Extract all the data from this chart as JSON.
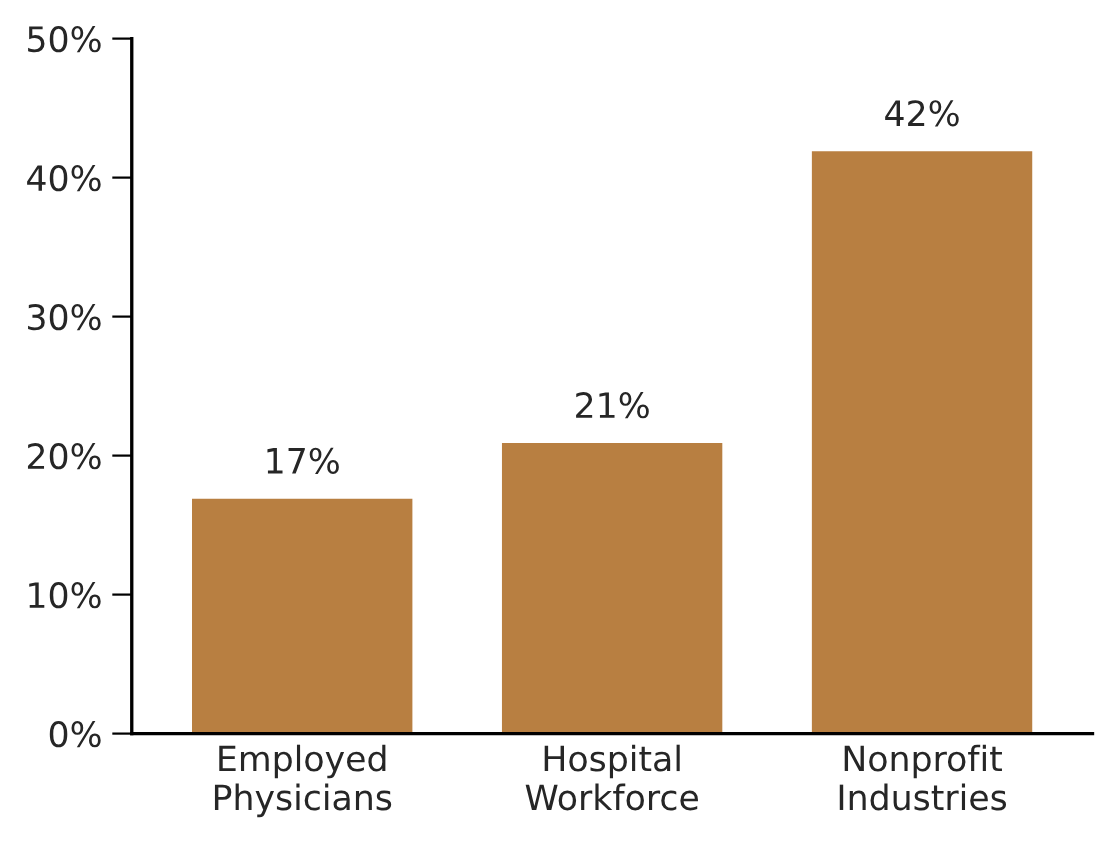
{
  "chart_data": {
    "type": "bar",
    "categories": [
      "Employed\nPhysicians",
      "Hospital\nWorkforce",
      "Nonprofit\nIndustries"
    ],
    "values": [
      17,
      21,
      42
    ],
    "value_labels": [
      "17%",
      "21%",
      "42%"
    ],
    "color": "#b87f41",
    "ylim": [
      0,
      50
    ],
    "yticks": [
      {
        "value": 0,
        "label": "0%"
      },
      {
        "value": 10,
        "label": "10%"
      },
      {
        "value": 20,
        "label": "20%"
      },
      {
        "value": 30,
        "label": "30%"
      },
      {
        "value": 40,
        "label": "40%"
      },
      {
        "value": 50,
        "label": "50%"
      }
    ],
    "grid": false
  }
}
